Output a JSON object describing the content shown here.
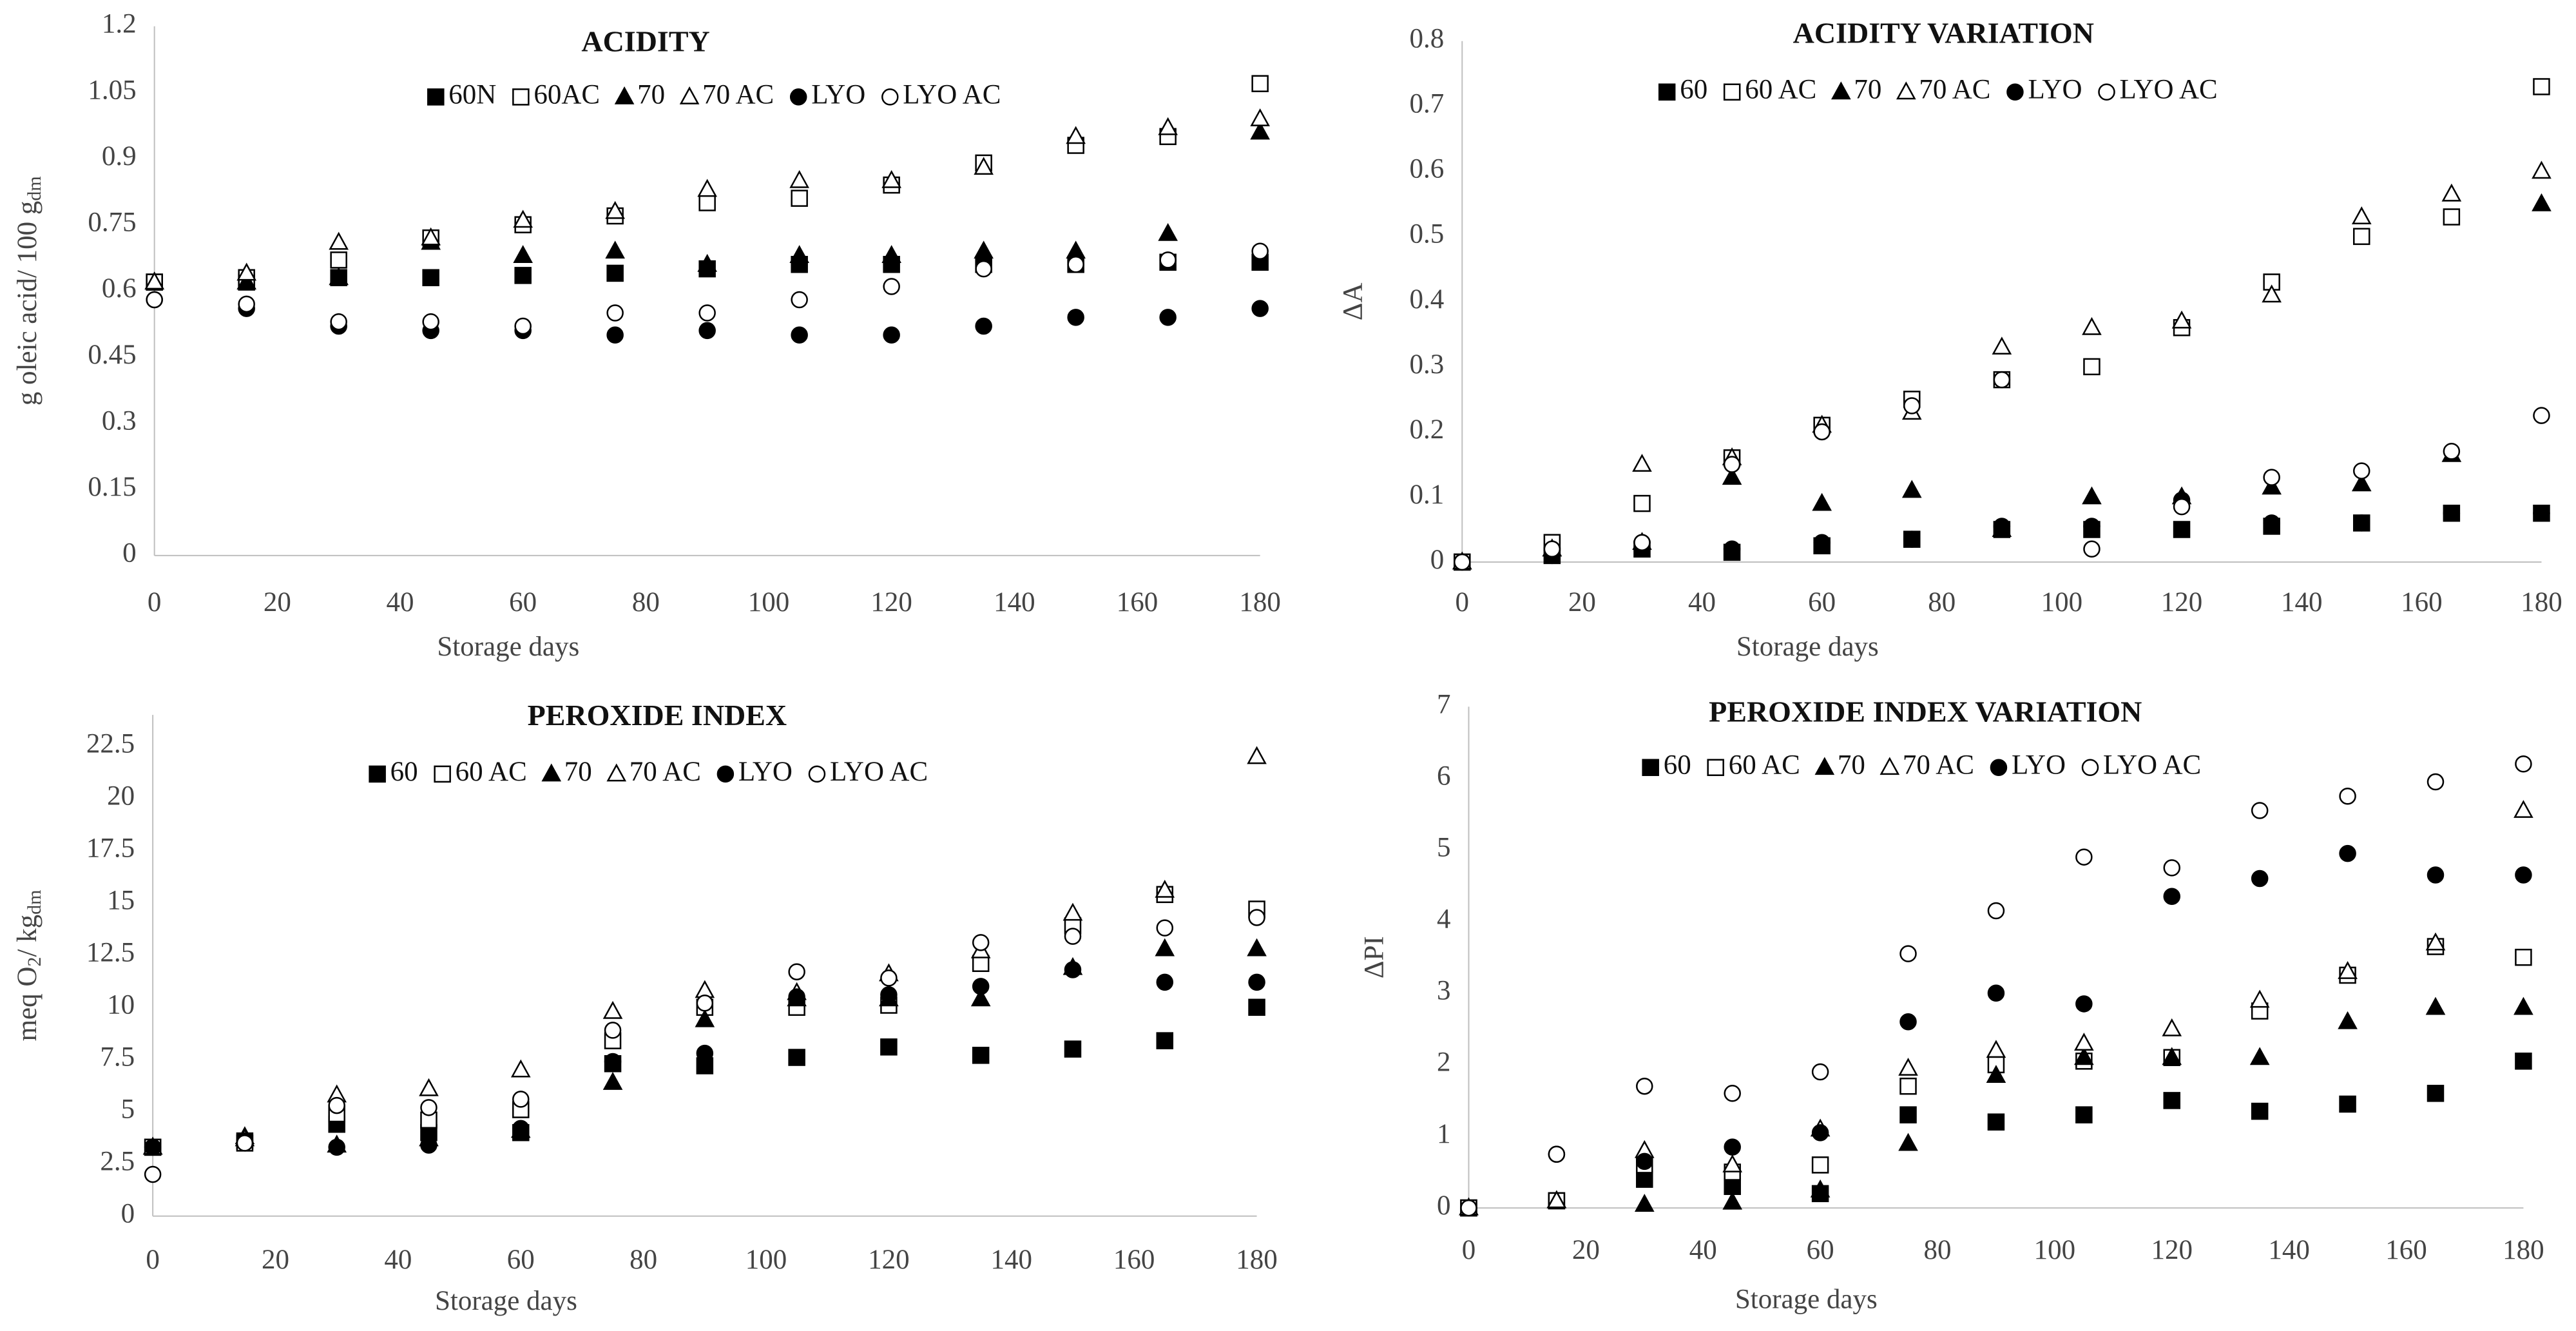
{
  "chart_data": [
    {
      "type": "scatter",
      "title": "ACIDITY",
      "xlabel": "Storage days",
      "ylabel": [
        {
          "text": "g oleic acid/ 100 g"
        },
        {
          "text": "dm",
          "sub": true
        }
      ],
      "x": [
        0,
        15,
        30,
        45,
        60,
        75,
        90,
        105,
        120,
        135,
        150,
        165,
        180
      ],
      "xlim": [
        0,
        180
      ],
      "xticks": [
        0,
        20,
        40,
        60,
        80,
        100,
        120,
        140,
        160,
        180
      ],
      "ylim": [
        0,
        1.2
      ],
      "yticks": [
        0,
        0.15,
        0.3,
        0.45,
        0.6,
        0.75,
        0.9,
        1.05,
        1.2
      ],
      "series": [
        {
          "name": "60N",
          "marker": "square",
          "filled": true,
          "color": "#000000",
          "values": [
            0.62,
            0.62,
            0.63,
            0.63,
            0.635,
            0.64,
            0.65,
            0.66,
            0.66,
            0.66,
            0.66,
            0.665,
            0.665
          ]
        },
        {
          "name": "60AC",
          "marker": "square",
          "filled": false,
          "color": "#000000",
          "values": [
            0.62,
            0.63,
            0.67,
            0.72,
            0.75,
            0.77,
            0.8,
            0.81,
            0.84,
            0.89,
            0.93,
            0.95,
            1.07
          ]
        },
        {
          "name": "70",
          "marker": "triangle",
          "filled": true,
          "color": "#000000",
          "values": [
            0.62,
            0.62,
            0.63,
            0.71,
            0.68,
            0.69,
            0.66,
            0.68,
            0.68,
            0.69,
            0.69,
            0.73,
            0.96
          ]
        },
        {
          "name": "70 AC",
          "marker": "triangle",
          "filled": false,
          "color": "#000000",
          "values": [
            0.62,
            0.64,
            0.71,
            0.72,
            0.76,
            0.78,
            0.83,
            0.85,
            0.85,
            0.88,
            0.95,
            0.97,
            0.99
          ]
        },
        {
          "name": "LYO",
          "marker": "circle",
          "filled": true,
          "color": "#000000",
          "values": [
            0.58,
            0.56,
            0.52,
            0.51,
            0.51,
            0.5,
            0.51,
            0.5,
            0.5,
            0.52,
            0.54,
            0.54,
            0.56
          ]
        },
        {
          "name": "LYO AC",
          "marker": "circle",
          "filled": false,
          "color": "#000000",
          "values": [
            0.58,
            0.57,
            0.53,
            0.53,
            0.52,
            0.55,
            0.55,
            0.58,
            0.61,
            0.65,
            0.66,
            0.67,
            0.69
          ]
        }
      ]
    },
    {
      "type": "scatter",
      "title": "ACIDITY VARIATION",
      "xlabel": "Storage days",
      "ylabel": [
        {
          "text": "ΔA"
        }
      ],
      "x": [
        0,
        15,
        30,
        45,
        60,
        75,
        90,
        105,
        120,
        135,
        150,
        165,
        180
      ],
      "xlim": [
        0,
        180
      ],
      "xticks": [
        0,
        20,
        40,
        60,
        80,
        100,
        120,
        140,
        160,
        180
      ],
      "ylim": [
        0,
        0.8
      ],
      "yticks": [
        0,
        0.1,
        0.2,
        0.3,
        0.4,
        0.5,
        0.6,
        0.7,
        0.8
      ],
      "series": [
        {
          "name": "60",
          "marker": "square",
          "filled": true,
          "color": "#000000",
          "values": [
            0,
            0.01,
            0.02,
            0.015,
            0.025,
            0.035,
            0.05,
            0.05,
            0.05,
            0.055,
            0.06,
            0.075,
            0.075
          ]
        },
        {
          "name": "60 AC",
          "marker": "square",
          "filled": false,
          "color": "#000000",
          "values": [
            0,
            0.03,
            0.09,
            0.16,
            0.21,
            0.25,
            0.28,
            0.3,
            0.36,
            0.43,
            0.5,
            0.53,
            0.73
          ]
        },
        {
          "name": "70",
          "marker": "triangle",
          "filled": true,
          "color": "#000000",
          "values": [
            0,
            0.02,
            0.03,
            0.13,
            0.09,
            0.11,
            0.05,
            0.1,
            0.1,
            0.115,
            0.12,
            0.165,
            0.55
          ]
        },
        {
          "name": "70 AC",
          "marker": "triangle",
          "filled": false,
          "color": "#000000",
          "values": [
            0,
            0.02,
            0.15,
            0.16,
            0.21,
            0.23,
            0.33,
            0.36,
            0.37,
            0.41,
            0.53,
            0.565,
            0.6
          ]
        },
        {
          "name": "LYO",
          "marker": "circle",
          "filled": true,
          "color": "#000000",
          "values": [
            0,
            0.01,
            0.03,
            0.02,
            0.03,
            0.035,
            0.055,
            0.055,
            0.095,
            0.06,
            0.06,
            0.075,
            0.075
          ]
        },
        {
          "name": "LYO AC",
          "marker": "circle",
          "filled": false,
          "color": "#000000",
          "values": [
            0,
            0.02,
            0.03,
            0.15,
            0.2,
            0.24,
            0.28,
            0.02,
            0.085,
            0.13,
            0.14,
            0.17,
            0.225
          ]
        }
      ]
    },
    {
      "type": "scatter",
      "title": "PEROXIDE INDEX",
      "xlabel": "Storage days",
      "ylabel": [
        {
          "text": "meq O"
        },
        {
          "text": "2",
          "sub": true
        },
        {
          "text": "/ kg"
        },
        {
          "text": "dm",
          "sub": true
        }
      ],
      "x": [
        0,
        15,
        30,
        45,
        60,
        75,
        90,
        105,
        120,
        135,
        150,
        165,
        180
      ],
      "xlim": [
        0,
        180
      ],
      "xticks": [
        0,
        20,
        40,
        60,
        80,
        100,
        120,
        140,
        160,
        180
      ],
      "ylim": [
        0,
        24
      ],
      "yticks": [
        0,
        2.5,
        5,
        7.5,
        10,
        12.5,
        15,
        17.5,
        20,
        22.5
      ],
      "series": [
        {
          "name": "60",
          "marker": "square",
          "filled": true,
          "color": "#000000",
          "values": [
            3.3,
            3.6,
            4.4,
            4.0,
            4.0,
            7.3,
            7.2,
            7.6,
            8.1,
            7.7,
            8.0,
            8.4,
            10.0
          ]
        },
        {
          "name": "60 AC",
          "marker": "square",
          "filled": false,
          "color": "#000000",
          "values": [
            3.3,
            3.5,
            4.9,
            4.6,
            5.1,
            8.4,
            10.0,
            10.0,
            10.1,
            12.1,
            13.9,
            15.4,
            14.7
          ]
        },
        {
          "name": "70",
          "marker": "triangle",
          "filled": true,
          "color": "#000000",
          "values": [
            3.3,
            3.8,
            3.4,
            3.7,
            4.1,
            6.4,
            9.4,
            10.4,
            10.4,
            10.4,
            11.9,
            12.8,
            12.8
          ]
        },
        {
          "name": "70 AC",
          "marker": "triangle",
          "filled": false,
          "color": "#000000",
          "values": [
            3.3,
            3.7,
            5.8,
            6.1,
            7.0,
            9.8,
            10.8,
            10.7,
            11.6,
            12.7,
            14.5,
            15.6,
            22.0
          ]
        },
        {
          "name": "LYO",
          "marker": "circle",
          "filled": true,
          "color": "#000000",
          "values": [
            3.3,
            3.6,
            3.3,
            3.4,
            4.2,
            7.4,
            7.8,
            10.5,
            10.6,
            11.0,
            11.8,
            11.2,
            11.2
          ]
        },
        {
          "name": "LYO AC",
          "marker": "circle",
          "filled": false,
          "color": "#000000",
          "values": [
            2.0,
            3.5,
            5.3,
            5.2,
            5.6,
            8.9,
            10.2,
            11.7,
            11.4,
            13.1,
            13.4,
            13.8,
            14.3
          ]
        }
      ]
    },
    {
      "type": "scatter",
      "title": "PEROXIDE INDEX VARIATION",
      "xlabel": "Storage days",
      "ylabel": [
        {
          "text": "ΔPI"
        }
      ],
      "x": [
        0,
        15,
        30,
        45,
        60,
        75,
        90,
        105,
        120,
        135,
        150,
        165,
        180
      ],
      "xlim": [
        0,
        180
      ],
      "xticks": [
        0,
        20,
        40,
        60,
        80,
        100,
        120,
        140,
        160,
        180
      ],
      "ylim": [
        0,
        7
      ],
      "yticks": [
        0,
        1,
        2,
        3,
        4,
        5,
        6,
        7
      ],
      "series": [
        {
          "name": "60",
          "marker": "square",
          "filled": true,
          "color": "#000000",
          "values": [
            0,
            0.1,
            0.4,
            0.3,
            0.2,
            1.3,
            1.2,
            1.3,
            1.5,
            1.35,
            1.45,
            1.6,
            2.05
          ]
        },
        {
          "name": "60 AC",
          "marker": "square",
          "filled": false,
          "color": "#000000",
          "values": [
            0,
            0.1,
            0.6,
            0.5,
            0.6,
            1.7,
            2.0,
            2.05,
            2.1,
            2.75,
            3.25,
            3.65,
            3.5
          ]
        },
        {
          "name": "70",
          "marker": "triangle",
          "filled": true,
          "color": "#000000",
          "values": [
            0,
            0.1,
            0.05,
            0.08,
            0.25,
            0.9,
            1.85,
            2.1,
            2.1,
            2.1,
            2.6,
            2.8,
            2.8
          ]
        },
        {
          "name": "70 AC",
          "marker": "triangle",
          "filled": false,
          "color": "#000000",
          "values": [
            0,
            0.1,
            0.8,
            0.6,
            1.1,
            1.95,
            2.2,
            2.3,
            2.5,
            2.9,
            3.3,
            3.7,
            5.55
          ]
        },
        {
          "name": "LYO",
          "marker": "circle",
          "filled": true,
          "color": "#000000",
          "values": [
            0,
            0.75,
            0.65,
            0.85,
            1.05,
            2.6,
            3.0,
            2.85,
            4.35,
            4.6,
            4.95,
            4.65,
            4.65
          ]
        },
        {
          "name": "LYO AC",
          "marker": "circle",
          "filled": false,
          "color": "#000000",
          "values": [
            0,
            0.75,
            1.7,
            1.6,
            1.9,
            3.55,
            4.15,
            4.9,
            4.75,
            5.55,
            5.75,
            5.95,
            6.2
          ]
        }
      ]
    }
  ]
}
